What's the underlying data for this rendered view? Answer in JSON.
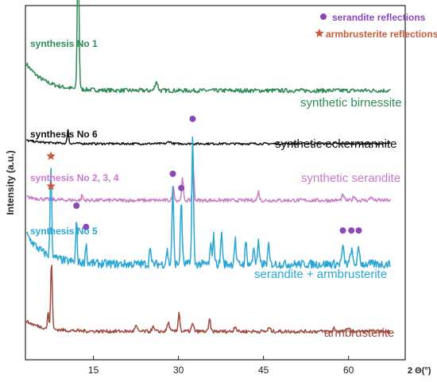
{
  "chart_data": {
    "type": "line",
    "title": "",
    "xlabel": "2 Θ(°)",
    "ylabel": "Intensity (a.u.)",
    "xlim": [
      3,
      70
    ],
    "xticks": [
      15,
      30,
      45,
      60
    ],
    "grid": false,
    "legend": [
      {
        "label": "serandite reflections",
        "marker": "circle",
        "color": "#8b48b8"
      },
      {
        "label": "armbrusterite reflections",
        "marker": "star",
        "color": "#c85b3c"
      }
    ],
    "series": [
      {
        "name": "synthetic birnessite",
        "synthesis": "synthesis No 1",
        "color": "#2e8b57",
        "baseline": 0.76,
        "start_bump": 0.08,
        "peaks": [
          [
            12.3,
            0.42,
            0.15
          ],
          [
            26.1,
            0.025,
            0.25
          ]
        ]
      },
      {
        "name": "synthetic eckermannite",
        "synthesis": "synthesis No 6",
        "color": "#111111",
        "baseline": 0.61,
        "start_bump": 0.01,
        "peaks": [
          [
            10.5,
            0.04,
            0.12
          ],
          [
            28.4,
            0.006,
            0.3
          ]
        ]
      },
      {
        "name": "synthetic serandite",
        "synthesis": "synthesis No 2, 3, 4",
        "color": "#c77bc8",
        "baseline": 0.45,
        "start_bump": 0.01,
        "peaks": [
          [
            13.0,
            0.015,
            0.12
          ],
          [
            29.1,
            0.04,
            0.15
          ],
          [
            30.7,
            0.06,
            0.15
          ],
          [
            32.6,
            0.09,
            0.15
          ],
          [
            44.1,
            0.025,
            0.15
          ],
          [
            59.0,
            0.015,
            0.2
          ],
          [
            61.0,
            0.012,
            0.2
          ],
          [
            64.0,
            0.01,
            0.2
          ]
        ]
      },
      {
        "name": "serandite + armbrusterite",
        "synthesis": "synthesis No 5",
        "color": "#29a5d6",
        "baseline": 0.27,
        "start_bump": 0.09,
        "peaks": [
          [
            7.5,
            0.26,
            0.14
          ],
          [
            12.0,
            0.12,
            0.12
          ],
          [
            13.7,
            0.06,
            0.12
          ],
          [
            25.0,
            0.06,
            0.12
          ],
          [
            28.0,
            0.04,
            0.15
          ],
          [
            29.0,
            0.21,
            0.15
          ],
          [
            30.5,
            0.18,
            0.15
          ],
          [
            32.5,
            0.36,
            0.15
          ],
          [
            35.7,
            0.05,
            0.15
          ],
          [
            36.2,
            0.08,
            0.15
          ],
          [
            37.6,
            0.09,
            0.15
          ],
          [
            40.0,
            0.07,
            0.15
          ],
          [
            41.9,
            0.06,
            0.15
          ],
          [
            43.3,
            0.05,
            0.15
          ],
          [
            44.1,
            0.06,
            0.15
          ],
          [
            45.9,
            0.05,
            0.15
          ],
          [
            59.0,
            0.045,
            0.2
          ],
          [
            60.5,
            0.04,
            0.2
          ],
          [
            61.8,
            0.04,
            0.2
          ]
        ]
      },
      {
        "name": "armbrusterite",
        "synthesis": "",
        "color": "#9e4a3e",
        "baseline": 0.08,
        "start_bump": 0.03,
        "peaks": [
          [
            7.0,
            0.045,
            0.12
          ],
          [
            7.6,
            0.19,
            0.14
          ],
          [
            22.5,
            0.015,
            0.2
          ],
          [
            25.5,
            0.012,
            0.2
          ],
          [
            28.2,
            0.025,
            0.2
          ],
          [
            30.1,
            0.055,
            0.15
          ],
          [
            32.5,
            0.02,
            0.2
          ],
          [
            35.5,
            0.035,
            0.15
          ],
          [
            40.0,
            0.015,
            0.2
          ],
          [
            46.0,
            0.01,
            0.2
          ],
          [
            57.5,
            0.01,
            0.2
          ],
          [
            60.0,
            0.012,
            0.2
          ]
        ]
      }
    ],
    "markers": {
      "serandite": [
        [
          12.0,
          0.435
        ],
        [
          13.7,
          0.375
        ],
        [
          29.0,
          0.525
        ],
        [
          30.5,
          0.485
        ],
        [
          32.5,
          0.68
        ],
        [
          59.0,
          0.365
        ],
        [
          60.5,
          0.365
        ],
        [
          61.8,
          0.365
        ]
      ],
      "armbrusterite": [
        [
          7.5,
          0.575
        ],
        [
          7.5,
          0.49
        ]
      ]
    }
  }
}
